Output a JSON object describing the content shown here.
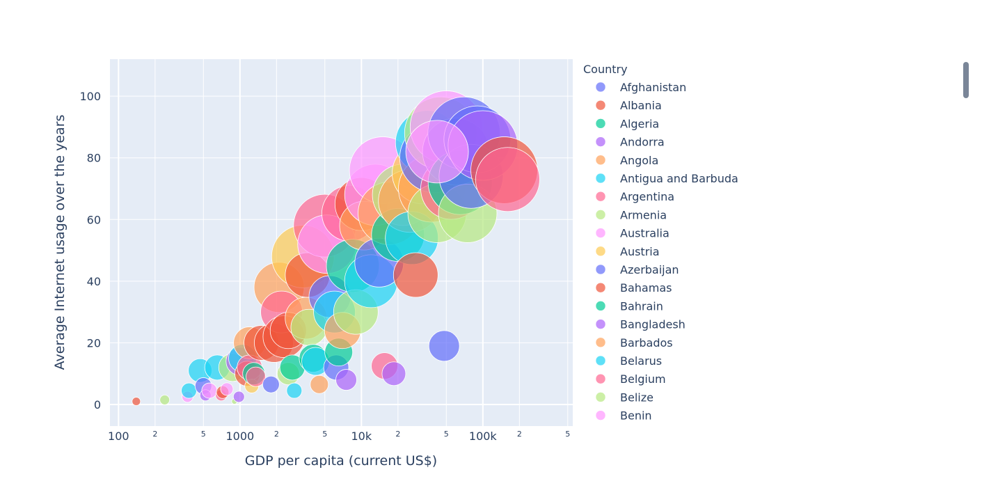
{
  "chart_data": {
    "type": "scatter",
    "subtype": "bubble",
    "xlabel": "GDP per capita (current US$)",
    "ylabel": "Average Internet usage over the years",
    "x_scale": "log",
    "xlim": [
      85,
      550000
    ],
    "ylim": [
      -7,
      112
    ],
    "grid": true,
    "legend_title": "Country",
    "legend_position": "right",
    "x_major_ticks": [
      {
        "value": 100,
        "label": "100"
      },
      {
        "value": 1000,
        "label": "1000"
      },
      {
        "value": 10000,
        "label": "10k"
      },
      {
        "value": 100000,
        "label": "100k"
      }
    ],
    "x_minor_ticks": [
      {
        "value": 200,
        "label": "2"
      },
      {
        "value": 500,
        "label": "5"
      },
      {
        "value": 2000,
        "label": "2"
      },
      {
        "value": 5000,
        "label": "5"
      },
      {
        "value": 20000,
        "label": "2"
      },
      {
        "value": 50000,
        "label": "5"
      },
      {
        "value": 200000,
        "label": "2"
      },
      {
        "value": 500000,
        "label": "5"
      }
    ],
    "y_ticks": [
      {
        "value": 0,
        "label": "0"
      },
      {
        "value": 20,
        "label": "20"
      },
      {
        "value": 40,
        "label": "40"
      },
      {
        "value": 60,
        "label": "60"
      },
      {
        "value": 80,
        "label": "80"
      },
      {
        "value": 100,
        "label": "100"
      }
    ],
    "series": [
      {
        "name": "Afghanistan",
        "color": "#636efa"
      },
      {
        "name": "Albania",
        "color": "#EF553B"
      },
      {
        "name": "Algeria",
        "color": "#00cc96"
      },
      {
        "name": "Andorra",
        "color": "#ab63fa"
      },
      {
        "name": "Angola",
        "color": "#FFA15A"
      },
      {
        "name": "Antigua and Barbuda",
        "color": "#19d3f3"
      },
      {
        "name": "Argentina",
        "color": "#FF6692"
      },
      {
        "name": "Armenia",
        "color": "#B6E880"
      },
      {
        "name": "Australia",
        "color": "#FF97FF"
      },
      {
        "name": "Austria",
        "color": "#FECB52"
      },
      {
        "name": "Azerbaijan",
        "color": "#636efa"
      },
      {
        "name": "Bahamas",
        "color": "#EF553B"
      },
      {
        "name": "Bahrain",
        "color": "#00cc96"
      },
      {
        "name": "Bangladesh",
        "color": "#ab63fa"
      },
      {
        "name": "Barbados",
        "color": "#FFA15A"
      },
      {
        "name": "Belarus",
        "color": "#19d3f3"
      },
      {
        "name": "Belgium",
        "color": "#FF6692"
      },
      {
        "name": "Belize",
        "color": "#B6E880"
      },
      {
        "name": "Benin",
        "color": "#FF97FF"
      }
    ],
    "bubbles": [
      [
        140,
        1,
        6,
        "#EF553B"
      ],
      [
        240,
        1.5,
        7,
        "#B6E880"
      ],
      [
        370,
        2.5,
        8,
        "#FF97FF"
      ],
      [
        380,
        4.5,
        11,
        "#19d3f3"
      ],
      [
        470,
        11,
        17,
        "#19d3f3"
      ],
      [
        500,
        6,
        12,
        "#636efa"
      ],
      [
        520,
        3,
        8,
        "#ab63fa"
      ],
      [
        560,
        4.5,
        11,
        "#FF97FF"
      ],
      [
        650,
        12,
        18,
        "#19d3f3"
      ],
      [
        700,
        3,
        8,
        "#FF6692"
      ],
      [
        720,
        4,
        9,
        "#EF553B"
      ],
      [
        780,
        5,
        9,
        "#FF97FF"
      ],
      [
        870,
        12,
        20,
        "#B6E880"
      ],
      [
        900,
        1,
        4,
        "#B6E880"
      ],
      [
        980,
        2.5,
        8,
        "#ab63fa"
      ],
      [
        1000,
        14,
        20,
        "#ab63fa"
      ],
      [
        1050,
        15,
        20,
        "#19d3f3"
      ],
      [
        1150,
        10,
        18,
        "#EF553B"
      ],
      [
        1200,
        20,
        23,
        "#FFA15A"
      ],
      [
        1200,
        12,
        18,
        "#FF6692"
      ],
      [
        1250,
        6,
        10,
        "#FECB52"
      ],
      [
        1300,
        10,
        16,
        "#00cc96"
      ],
      [
        1350,
        9,
        14,
        "#FF6692"
      ],
      [
        1500,
        20,
        25,
        "#EF553B"
      ],
      [
        1800,
        6.5,
        12,
        "#636efa"
      ],
      [
        1900,
        20,
        28,
        "#EF553B"
      ],
      [
        2100,
        38,
        36,
        "#FFA15A"
      ],
      [
        2200,
        30,
        30,
        "#FF6692"
      ],
      [
        2300,
        22,
        30,
        "#EF553B"
      ],
      [
        2500,
        24,
        26,
        "#EF553B"
      ],
      [
        2500,
        10,
        16,
        "#B6E880"
      ],
      [
        2700,
        12,
        18,
        "#00cc96"
      ],
      [
        2800,
        4.5,
        11,
        "#19d3f3"
      ],
      [
        3300,
        48,
        45,
        "#FECB52"
      ],
      [
        3500,
        28,
        30,
        "#FFA15A"
      ],
      [
        3600,
        42,
        32,
        "#EF553B"
      ],
      [
        3700,
        25,
        26,
        "#B6E880"
      ],
      [
        4000,
        15,
        20,
        "#00cc96"
      ],
      [
        4200,
        14,
        20,
        "#19d3f3"
      ],
      [
        4500,
        6.5,
        13,
        "#FFA15A"
      ],
      [
        5000,
        58,
        45,
        "#FF6692"
      ],
      [
        5200,
        52,
        42,
        "#FF97FF"
      ],
      [
        5500,
        35,
        30,
        "#636efa"
      ],
      [
        6000,
        30,
        30,
        "#19d3f3"
      ],
      [
        6200,
        12,
        18,
        "#636efa"
      ],
      [
        6500,
        17,
        20,
        "#00cc96"
      ],
      [
        7000,
        24,
        26,
        "#FFA15A"
      ],
      [
        7500,
        8,
        15,
        "#ab63fa"
      ],
      [
        8000,
        62,
        40,
        "#FF6692"
      ],
      [
        8500,
        45,
        38,
        "#00cc96"
      ],
      [
        9000,
        30,
        32,
        "#B6E880"
      ],
      [
        10000,
        65,
        38,
        "#EF553B"
      ],
      [
        10500,
        58,
        35,
        "#FFA15A"
      ],
      [
        12000,
        40,
        38,
        "#19d3f3"
      ],
      [
        13000,
        68,
        44,
        "#FF97FF"
      ],
      [
        14000,
        46,
        35,
        "#636efa"
      ],
      [
        15000,
        76,
        48,
        "#FF97FF"
      ],
      [
        15500,
        12.5,
        19,
        "#FF6692"
      ],
      [
        17000,
        62,
        45,
        "#FFA15A"
      ],
      [
        18500,
        10,
        17,
        "#ab63fa"
      ],
      [
        20000,
        55,
        38,
        "#00cc96"
      ],
      [
        22000,
        68,
        44,
        "#B6E880"
      ],
      [
        25000,
        66,
        45,
        "#FFA15A"
      ],
      [
        26000,
        54,
        38,
        "#19d3f3"
      ],
      [
        28000,
        42,
        32,
        "#EF553B"
      ],
      [
        32000,
        75,
        44,
        "#FECB52"
      ],
      [
        35000,
        85,
        46,
        "#19d3f3"
      ],
      [
        38000,
        70,
        48,
        "#FFA15A"
      ],
      [
        40000,
        80,
        50,
        "#636efa"
      ],
      [
        42000,
        62,
        42,
        "#B6E880"
      ],
      [
        45000,
        88,
        52,
        "#B6E880"
      ],
      [
        48000,
        19,
        22,
        "#636efa"
      ],
      [
        50000,
        90,
        52,
        "#FF97FF"
      ],
      [
        55000,
        70,
        44,
        "#FF6692"
      ],
      [
        60000,
        82,
        48,
        "#ab63fa"
      ],
      [
        65000,
        72,
        46,
        "#00cc96"
      ],
      [
        70000,
        88,
        52,
        "#636efa"
      ],
      [
        75000,
        62,
        42,
        "#B6E880"
      ],
      [
        80000,
        74,
        46,
        "#636efa"
      ],
      [
        90000,
        86,
        48,
        "#636efa"
      ],
      [
        100000,
        84,
        50,
        "#ab63fa"
      ],
      [
        150000,
        76,
        48,
        "#EF553B"
      ],
      [
        160000,
        73,
        46,
        "#FF6692"
      ],
      [
        42000,
        82,
        45,
        "#FF97FF"
      ]
    ]
  }
}
